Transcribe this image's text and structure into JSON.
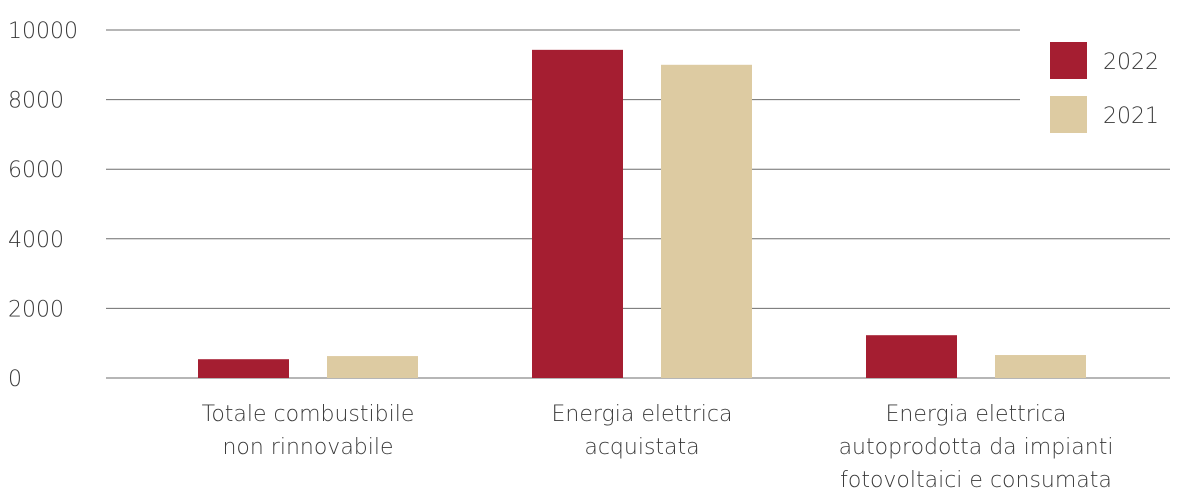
{
  "chart_data": {
    "type": "bar",
    "categories": [
      "Totale combustibile non rinnovabile",
      "Energia elettrica acquistata",
      "Energia elettrica autoprodotta da impianti fotovoltaici e consumata"
    ],
    "category_lines": [
      [
        "Totale combustibile",
        "non rinnovabile"
      ],
      [
        "Energia elettrica",
        "acquistata"
      ],
      [
        "Energia elettrica",
        "autoprodotta da impianti",
        "fotovoltaici e consumata"
      ]
    ],
    "series": [
      {
        "name": "2022",
        "color": "#a51e31",
        "values": [
          540,
          9430,
          1230
        ]
      },
      {
        "name": "2021",
        "color": "#ddcba2",
        "values": [
          630,
          9000,
          660
        ]
      }
    ],
    "ylim": [
      0,
      10000
    ],
    "yticks": [
      0,
      2000,
      4000,
      6000,
      8000,
      10000
    ],
    "grid": true,
    "legend_position": "top-right"
  }
}
